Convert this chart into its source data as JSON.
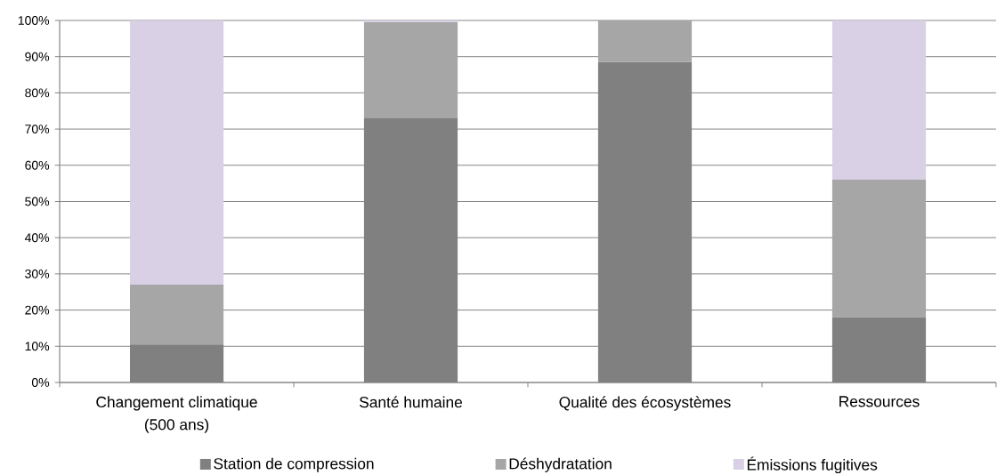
{
  "chart_data": {
    "type": "bar",
    "stacked": true,
    "categories": [
      "Changement climatique (500 ans)",
      "Santé humaine",
      "Qualité des écosystèmes",
      "Ressources"
    ],
    "series": [
      {
        "name": "Station de compression",
        "color": "#808080",
        "values": [
          10.5,
          73,
          88.5,
          18
        ]
      },
      {
        "name": "Déshydratation",
        "color": "#a6a6a6",
        "values": [
          16.5,
          26.5,
          11.5,
          38
        ]
      },
      {
        "name": "Émissions fugitives",
        "color": "#d9d0e6",
        "values": [
          73,
          0.5,
          0,
          44
        ]
      }
    ],
    "ylim": [
      0,
      100
    ],
    "yticks": [
      {
        "value": 0,
        "label": "0%"
      },
      {
        "value": 10,
        "label": "10%"
      },
      {
        "value": 20,
        "label": "20%"
      },
      {
        "value": 30,
        "label": "30%"
      },
      {
        "value": 40,
        "label": "40%"
      },
      {
        "value": 50,
        "label": "50%"
      },
      {
        "value": 60,
        "label": "60%"
      },
      {
        "value": 70,
        "label": "70%"
      },
      {
        "value": 80,
        "label": "80%"
      },
      {
        "value": 90,
        "label": "90%"
      },
      {
        "value": 100,
        "label": "100%"
      }
    ],
    "grid": "y",
    "legend": "bottom"
  }
}
